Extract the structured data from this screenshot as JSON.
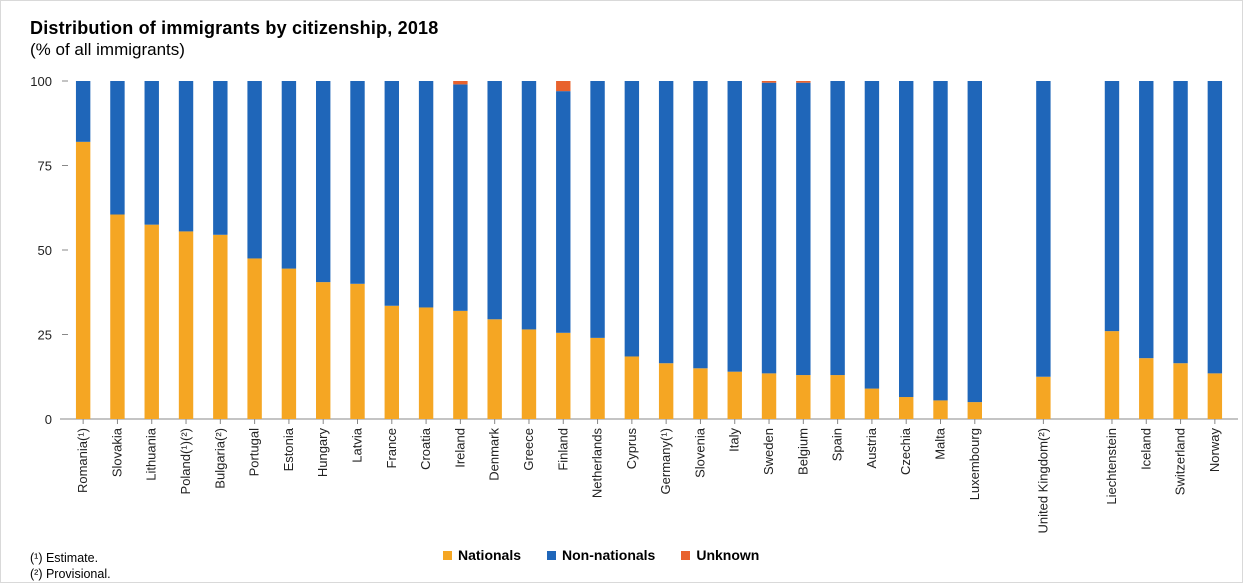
{
  "chart_data": {
    "type": "bar",
    "stacked": true,
    "title": "Distribution  of immigrants by citizenship, 2018",
    "subtitle": "(% of all immigrants)",
    "ylim": [
      0,
      100
    ],
    "yticks": [
      0,
      25,
      50,
      75,
      100
    ],
    "grid": false,
    "legend_position": "bottom",
    "categories": [
      "Romania(¹)",
      "Slovakia",
      "Lithuania",
      "Poland(¹)(²)",
      "Bulgaria(²)",
      "Portugal",
      "Estonia",
      "Hungary",
      "Latvia",
      "France",
      "Croatia",
      "Ireland",
      "Denmark",
      "Greece",
      "Finland",
      "Netherlands",
      "Cyprus",
      "Germany(¹)",
      "Slovenia",
      "Italy",
      "Sweden",
      "Belgium",
      "Spain",
      "Austria",
      "Czechia",
      "Malta",
      "Luxembourg",
      "United Kingdom(²)",
      "Liechtenstein",
      "Iceland",
      "Switzerland",
      "Norway"
    ],
    "group_break_after": [
      "Luxembourg",
      "United Kingdom(²)"
    ],
    "series": [
      {
        "name": "Nationals",
        "color": "#f5a623",
        "values": [
          82,
          60.5,
          57.5,
          55.5,
          54.5,
          47.5,
          44.5,
          40.5,
          40,
          33.5,
          33,
          32,
          29.5,
          26.5,
          25.5,
          24,
          18.5,
          16.5,
          15,
          14,
          13.5,
          13,
          13,
          9,
          6.5,
          5.5,
          5,
          12.5,
          26,
          18,
          16.5,
          13.5
        ]
      },
      {
        "name": "Non-nationals",
        "color": "#1f66b9",
        "values": [
          18,
          39.5,
          42.5,
          44.5,
          45.5,
          52.5,
          55.5,
          59.5,
          60,
          66.5,
          67,
          67,
          70.5,
          73.5,
          71.5,
          76,
          81.5,
          83.5,
          85,
          86,
          86,
          86.5,
          87,
          91,
          93.5,
          94.5,
          95,
          87.5,
          74,
          82,
          83.5,
          86.5
        ]
      },
      {
        "name": "Unknown",
        "color": "#e8622d",
        "values": [
          0,
          0,
          0,
          0,
          0,
          0,
          0,
          0,
          0,
          0,
          0,
          1,
          0,
          0,
          3,
          0,
          0,
          0,
          0,
          0,
          0.5,
          0.5,
          0,
          0,
          0,
          0,
          0,
          0,
          0,
          0,
          0,
          0
        ]
      }
    ]
  },
  "footnotes": [
    "(¹) Estimate.",
    "(²) Provisional."
  ]
}
